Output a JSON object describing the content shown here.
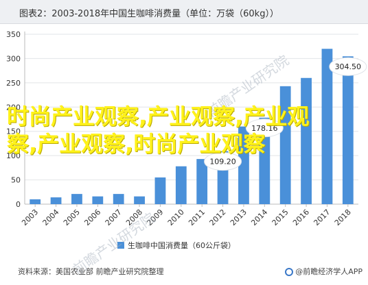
{
  "header": {
    "title": "图表2：2003-2018年中国生咖啡消费量（单位：万袋（60kg））"
  },
  "chart_data": {
    "type": "bar",
    "categories": [
      "2003",
      "2004",
      "2005",
      "2006",
      "2007",
      "2008",
      "2009",
      "2010",
      "2011",
      "2012",
      "2013",
      "2014",
      "2015",
      "2016",
      "2017",
      "2018"
    ],
    "series": [
      {
        "name": "生咖啡中国消费量（60公斤袋）",
        "values": [
          10,
          14,
          21,
          16,
          21,
          16,
          55,
          78,
          93,
          109.2,
          160,
          178.16,
          243,
          260,
          320,
          304.5
        ]
      }
    ],
    "data_labels": [
      {
        "category": "2012",
        "text": "109.20"
      },
      {
        "category": "2014",
        "text": "178.16"
      },
      {
        "category": "2018",
        "text": "304.50"
      }
    ],
    "y_ticks": [
      "0",
      "50",
      "100",
      "150",
      "200",
      "250",
      "300",
      "350"
    ],
    "ylim": [
      0,
      350
    ],
    "grid": true,
    "legend_position": "bottom",
    "bar_color": "#4a90d9",
    "label_bubble_color": "#ffffff"
  },
  "footer": {
    "source": "资料来源：美国农业部 前瞻产业研究院整理",
    "brand": "@前瞻经济学人APP"
  },
  "overlay": {
    "text": "时尚产业观察,产业观察,产业观察,产业观察,时尚产业观察"
  },
  "watermark": {
    "text": "前瞻产业研究院"
  }
}
